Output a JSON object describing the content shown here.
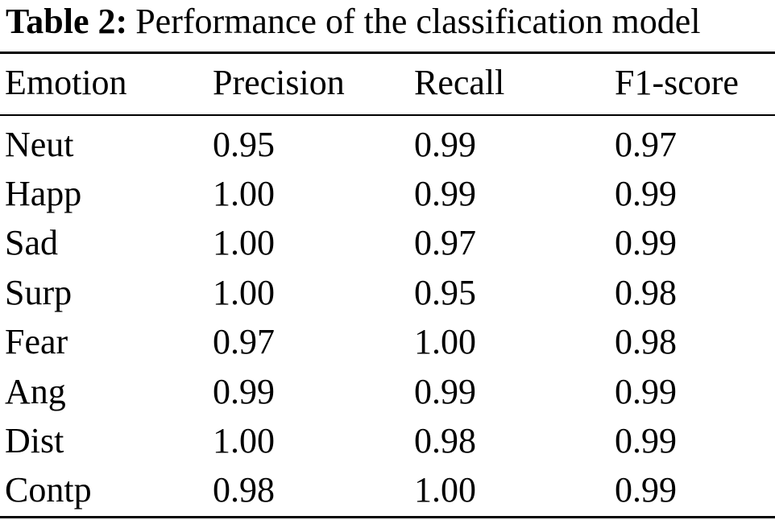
{
  "caption": {
    "label": "Table 2:",
    "text": "Performance of the classification model"
  },
  "table": {
    "columns": [
      "Emotion",
      "Precision",
      "Recall",
      "F1-score"
    ],
    "rows": [
      [
        "Neut",
        "0.95",
        "0.99",
        "0.97"
      ],
      [
        "Happ",
        "1.00",
        "0.99",
        "0.99"
      ],
      [
        "Sad",
        "1.00",
        "0.97",
        "0.99"
      ],
      [
        "Surp",
        "1.00",
        "0.95",
        "0.98"
      ],
      [
        "Fear",
        "0.97",
        "1.00",
        "0.98"
      ],
      [
        "Ang",
        "0.99",
        "0.99",
        "0.99"
      ],
      [
        "Dist",
        "1.00",
        "0.98",
        "0.99"
      ],
      [
        "Contp",
        "0.98",
        "1.00",
        "0.99"
      ]
    ]
  }
}
